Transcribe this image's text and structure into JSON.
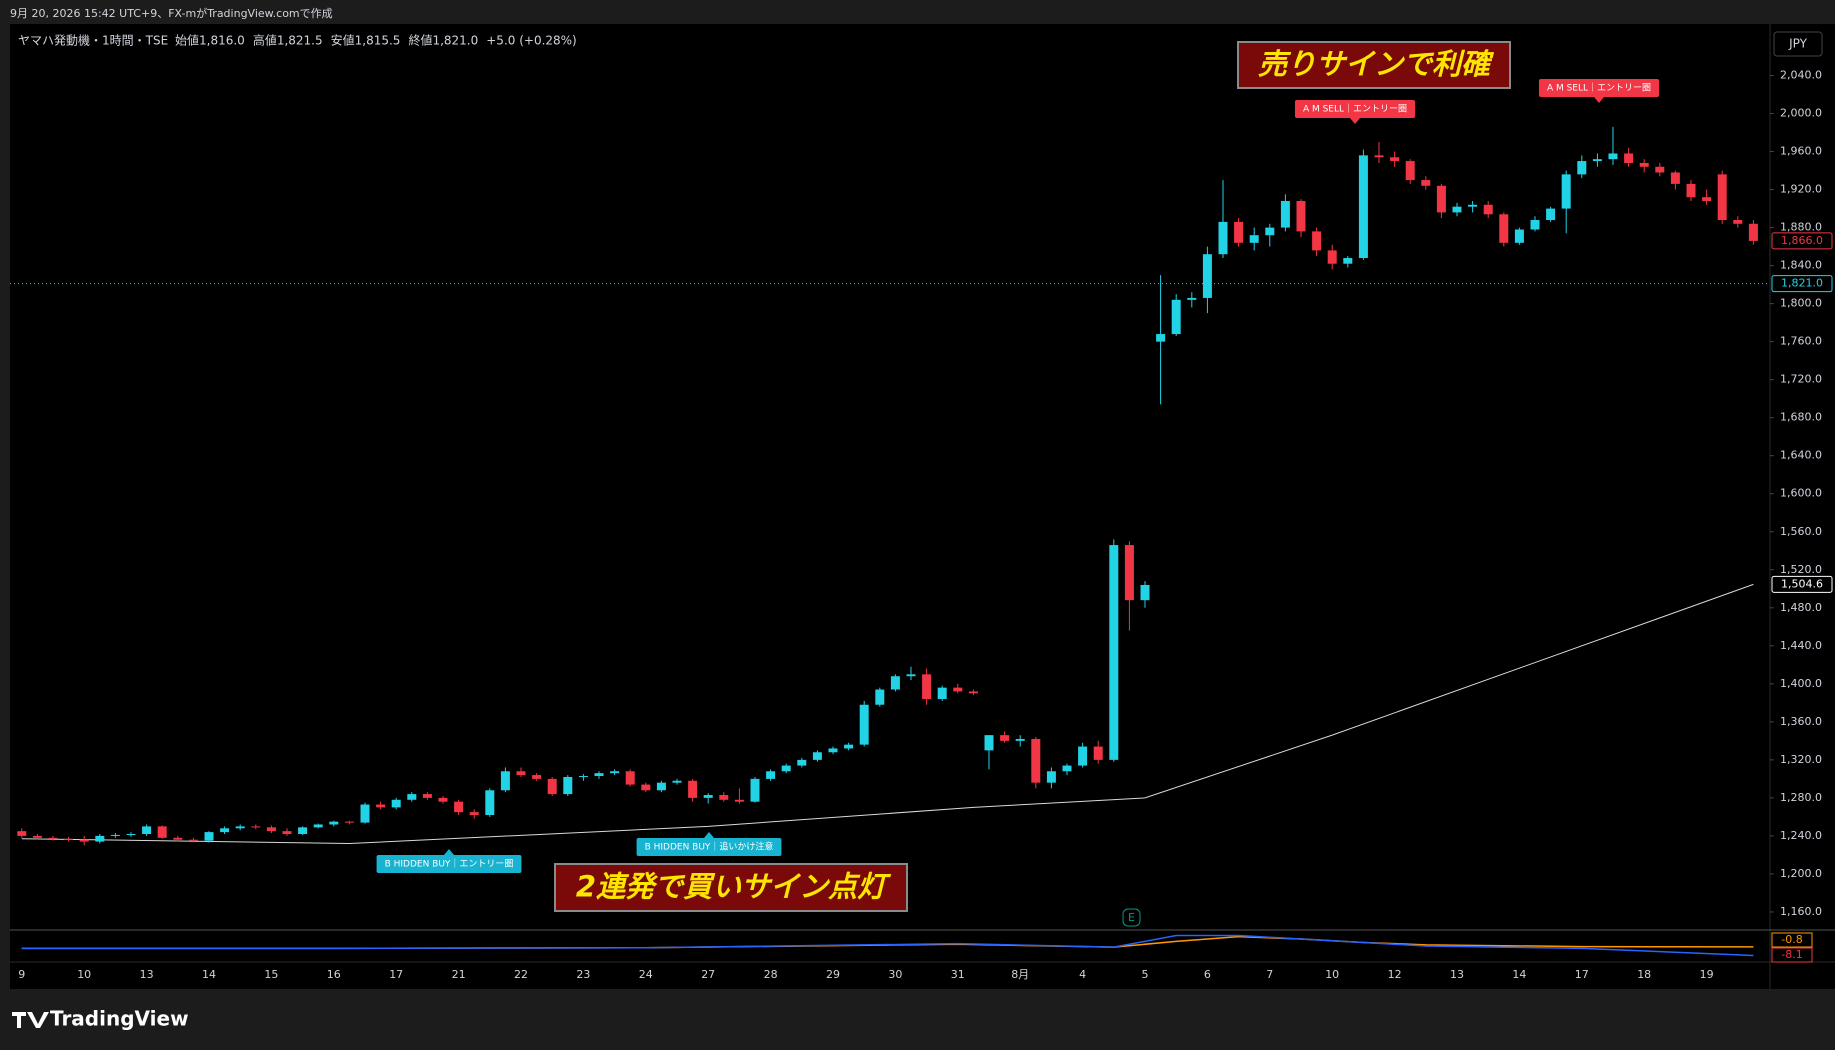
{
  "screen": {
    "caption": "9月 20, 2026 15:42 UTC+9、FX-mがTradingView.comで作成",
    "brand": "TradingView"
  },
  "chart_data": {
    "type": "candlestick",
    "symbol": "ヤマハ発動機・1時間・TSE",
    "ohlc_legend": [
      "始値1,816.0",
      "高値1,821.5",
      "安値1,815.5",
      "終値1,821.0",
      "+5.0 (+0.28%)"
    ],
    "currency": "JPY",
    "up_color": "#22d3e6",
    "down_color": "#f23645",
    "x": [
      "9",
      null,
      null,
      null,
      "10",
      null,
      null,
      null,
      "13",
      null,
      null,
      null,
      "14",
      null,
      null,
      null,
      "15",
      null,
      null,
      null,
      "16",
      null,
      null,
      null,
      "17",
      null,
      null,
      null,
      "21",
      null,
      null,
      null,
      "22",
      null,
      null,
      null,
      "23",
      null,
      null,
      null,
      "24",
      null,
      null,
      null,
      "27",
      null,
      null,
      null,
      "28",
      null,
      null,
      null,
      "29",
      null,
      null,
      null,
      "30",
      null,
      null,
      null,
      "31",
      null,
      null,
      null,
      "8月",
      null,
      null,
      null,
      "4",
      null,
      null,
      null,
      "5",
      null,
      null,
      null,
      "6",
      null,
      null,
      null,
      "7",
      null,
      null,
      null,
      "10",
      null,
      null,
      null,
      "12",
      null,
      null,
      null,
      "13",
      null,
      null,
      null,
      "14",
      null,
      null,
      null,
      "17",
      null,
      null,
      null,
      "18",
      null,
      null,
      null,
      "19",
      null,
      null,
      null
    ],
    "ohlc": [
      [
        1245,
        1248,
        1238,
        1240
      ],
      [
        1240,
        1242,
        1236,
        1238
      ],
      [
        1238,
        1240,
        1235,
        1237
      ],
      [
        1237,
        1239,
        1234,
        1236
      ],
      [
        1236,
        1240,
        1230,
        1234
      ],
      [
        1234,
        1242,
        1232,
        1240
      ],
      [
        1240,
        1243,
        1238,
        1241
      ],
      [
        1241,
        1244,
        1239,
        1242
      ],
      [
        1242,
        1252,
        1240,
        1250
      ],
      [
        1250,
        1251,
        1237,
        1238
      ],
      [
        1238,
        1240,
        1234,
        1236
      ],
      [
        1236,
        1238,
        1233,
        1235
      ],
      [
        1235,
        1245,
        1233,
        1244
      ],
      [
        1244,
        1250,
        1242,
        1248
      ],
      [
        1248,
        1252,
        1246,
        1250
      ],
      [
        1250,
        1252,
        1247,
        1249
      ],
      [
        1249,
        1251,
        1243,
        1245
      ],
      [
        1245,
        1248,
        1240,
        1242
      ],
      [
        1242,
        1250,
        1241,
        1249
      ],
      [
        1249,
        1253,
        1248,
        1252
      ],
      [
        1252,
        1256,
        1250,
        1255
      ],
      [
        1255,
        1256,
        1252,
        1254
      ],
      [
        1254,
        1275,
        1253,
        1273
      ],
      [
        1273,
        1276,
        1268,
        1270
      ],
      [
        1270,
        1280,
        1268,
        1278
      ],
      [
        1278,
        1286,
        1276,
        1284
      ],
      [
        1284,
        1286,
        1278,
        1280
      ],
      [
        1280,
        1282,
        1274,
        1276
      ],
      [
        1276,
        1278,
        1262,
        1265
      ],
      [
        1265,
        1268,
        1258,
        1262
      ],
      [
        1262,
        1290,
        1260,
        1288
      ],
      [
        1288,
        1312,
        1286,
        1308
      ],
      [
        1308,
        1312,
        1302,
        1304
      ],
      [
        1304,
        1306,
        1298,
        1300
      ],
      [
        1300,
        1302,
        1282,
        1284
      ],
      [
        1284,
        1304,
        1282,
        1302
      ],
      [
        1302,
        1305,
        1298,
        1303
      ],
      [
        1303,
        1308,
        1300,
        1306
      ],
      [
        1306,
        1310,
        1304,
        1308
      ],
      [
        1308,
        1310,
        1292,
        1294
      ],
      [
        1294,
        1296,
        1286,
        1288
      ],
      [
        1288,
        1298,
        1286,
        1296
      ],
      [
        1296,
        1300,
        1294,
        1298
      ],
      [
        1298,
        1300,
        1276,
        1280
      ],
      [
        1280,
        1285,
        1274,
        1283
      ],
      [
        1283,
        1286,
        1276,
        1278
      ],
      [
        1278,
        1290,
        1274,
        1276
      ],
      [
        1276,
        1302,
        1275,
        1300
      ],
      [
        1300,
        1310,
        1298,
        1308
      ],
      [
        1308,
        1316,
        1306,
        1314
      ],
      [
        1314,
        1322,
        1312,
        1320
      ],
      [
        1320,
        1330,
        1318,
        1328
      ],
      [
        1328,
        1334,
        1326,
        1332
      ],
      [
        1332,
        1338,
        1330,
        1336
      ],
      [
        1336,
        1382,
        1334,
        1378
      ],
      [
        1378,
        1396,
        1376,
        1394
      ],
      [
        1394,
        1410,
        1392,
        1408
      ],
      [
        1408,
        1418,
        1404,
        1410
      ],
      [
        1410,
        1416,
        1378,
        1384
      ],
      [
        1384,
        1398,
        1382,
        1396
      ],
      [
        1396,
        1400,
        1390,
        1392
      ],
      [
        1392,
        1394,
        1388,
        1390
      ],
      [
        1330,
        1346,
        1310,
        1346
      ],
      [
        1346,
        1350,
        1338,
        1340
      ],
      [
        1340,
        1346,
        1334,
        1342
      ],
      [
        1342,
        1344,
        1290,
        1296
      ],
      [
        1296,
        1312,
        1290,
        1308
      ],
      [
        1308,
        1316,
        1304,
        1314
      ],
      [
        1314,
        1338,
        1312,
        1334
      ],
      [
        1334,
        1340,
        1316,
        1320
      ],
      [
        1320,
        1552,
        1318,
        1546
      ],
      [
        1546,
        1550,
        1456,
        1488
      ],
      [
        1488,
        1508,
        1480,
        1504
      ],
      [
        1760,
        1830,
        1694,
        1768
      ],
      [
        1768,
        1810,
        1766,
        1804
      ],
      [
        1804,
        1812,
        1796,
        1806
      ],
      [
        1806,
        1860,
        1790,
        1852
      ],
      [
        1852,
        1930,
        1848,
        1886
      ],
      [
        1886,
        1890,
        1860,
        1864
      ],
      [
        1864,
        1880,
        1856,
        1872
      ],
      [
        1872,
        1884,
        1860,
        1880
      ],
      [
        1880,
        1915,
        1876,
        1908
      ],
      [
        1908,
        1910,
        1870,
        1876
      ],
      [
        1876,
        1880,
        1850,
        1856
      ],
      [
        1856,
        1862,
        1836,
        1842
      ],
      [
        1842,
        1850,
        1838,
        1848
      ],
      [
        1848,
        1962,
        1846,
        1956
      ],
      [
        1956,
        1970,
        1948,
        1954
      ],
      [
        1954,
        1960,
        1944,
        1950
      ],
      [
        1950,
        1952,
        1926,
        1930
      ],
      [
        1930,
        1934,
        1920,
        1924
      ],
      [
        1924,
        1926,
        1890,
        1896
      ],
      [
        1896,
        1906,
        1892,
        1902
      ],
      [
        1902,
        1908,
        1896,
        1904
      ],
      [
        1904,
        1908,
        1890,
        1894
      ],
      [
        1894,
        1896,
        1860,
        1864
      ],
      [
        1864,
        1880,
        1862,
        1878
      ],
      [
        1878,
        1892,
        1876,
        1888
      ],
      [
        1888,
        1902,
        1886,
        1900
      ],
      [
        1900,
        1940,
        1874,
        1936
      ],
      [
        1936,
        1956,
        1932,
        1950
      ],
      [
        1950,
        1958,
        1944,
        1952
      ],
      [
        1952,
        1986,
        1946,
        1958
      ],
      [
        1958,
        1964,
        1944,
        1948
      ],
      [
        1948,
        1952,
        1938,
        1944
      ],
      [
        1944,
        1948,
        1934,
        1938
      ],
      [
        1938,
        1940,
        1920,
        1926
      ],
      [
        1926,
        1930,
        1908,
        1912
      ],
      [
        1912,
        1920,
        1904,
        1908
      ],
      [
        1936,
        1940,
        1884,
        1888
      ],
      [
        1888,
        1892,
        1880,
        1884
      ],
      [
        1884,
        1888,
        1862,
        1866
      ]
    ],
    "ylim": [
      1141,
      2090
    ],
    "yticks": [
      {
        "value": 1160,
        "label": "1,160.0"
      },
      {
        "value": 1200,
        "label": "1,200.0"
      },
      {
        "value": 1240,
        "label": "1,240.0"
      },
      {
        "value": 1280,
        "label": "1,280.0"
      },
      {
        "value": 1320,
        "label": "1,320.0"
      },
      {
        "value": 1360,
        "label": "1,360.0"
      },
      {
        "value": 1400,
        "label": "1,400.0"
      },
      {
        "value": 1440,
        "label": "1,440.0"
      },
      {
        "value": 1480,
        "label": "1,480.0"
      },
      {
        "value": 1520,
        "label": "1,520.0"
      },
      {
        "value": 1560,
        "label": "1,560.0"
      },
      {
        "value": 1600,
        "label": "1,600.0"
      },
      {
        "value": 1640,
        "label": "1,640.0"
      },
      {
        "value": 1680,
        "label": "1,680.0"
      },
      {
        "value": 1720,
        "label": "1,720.0"
      },
      {
        "value": 1760,
        "label": "1,760.0"
      },
      {
        "value": 1800,
        "label": "1,800.0"
      },
      {
        "value": 1840,
        "label": "1,840.0"
      },
      {
        "value": 1880,
        "label": "1,880.0"
      },
      {
        "value": 1920,
        "label": "1,920.0"
      },
      {
        "value": 1960,
        "label": "1,960.0"
      },
      {
        "value": 2000,
        "label": "2,000.0"
      },
      {
        "value": 2040,
        "label": "2,040.0"
      }
    ],
    "moving_average": {
      "color": "#d9d9d9",
      "x": [
        0,
        21,
        44,
        61,
        72,
        84,
        111
      ],
      "values": [
        1237,
        1232,
        1250,
        1270,
        1280,
        1346,
        1504.6
      ]
    },
    "price_tags": [
      {
        "value": 1866,
        "label": "1,866.0",
        "color": "#f23645"
      },
      {
        "value": 1821,
        "label": "1,821.0",
        "color": "#22d3e6"
      },
      {
        "value": 1504.6,
        "label": "1,504.6",
        "color": "#ffffff"
      }
    ],
    "oscillator": {
      "ylim": [
        -12,
        12
      ],
      "x": [
        0,
        20,
        40,
        60,
        70,
        74,
        78,
        82,
        86,
        90,
        100,
        111
      ],
      "series": [
        {
          "color": "#ff9800",
          "values": [
            -2,
            -2,
            -1.5,
            1.5,
            -1,
            4,
            8,
            6,
            3,
            1,
            -0.5,
            -0.8
          ]
        },
        {
          "color": "#2962ff",
          "values": [
            -2,
            -2,
            -1.5,
            2,
            -1,
            9,
            9,
            6,
            3,
            0,
            -2,
            -8.1
          ]
        }
      ],
      "tags": [
        {
          "value": -0.8,
          "label": "-0.8",
          "color": "#ff9800"
        },
        {
          "value": -8.1,
          "label": "-8.1",
          "color": "#f23645"
        }
      ]
    },
    "signals": [
      {
        "text": "A M SELL｜エントリー圏",
        "kind": "sell"
      },
      {
        "text": "A M SELL｜エントリー圏",
        "kind": "sell"
      },
      {
        "text": "B HIDDEN BUY｜エントリー圏",
        "kind": "buy"
      },
      {
        "text": "B HIDDEN BUY｜追いかけ注意",
        "kind": "buy"
      }
    ],
    "annotations": [
      "売りサインで利確",
      "2連発で買いサイン点灯"
    ],
    "earnings_marker": "E"
  }
}
